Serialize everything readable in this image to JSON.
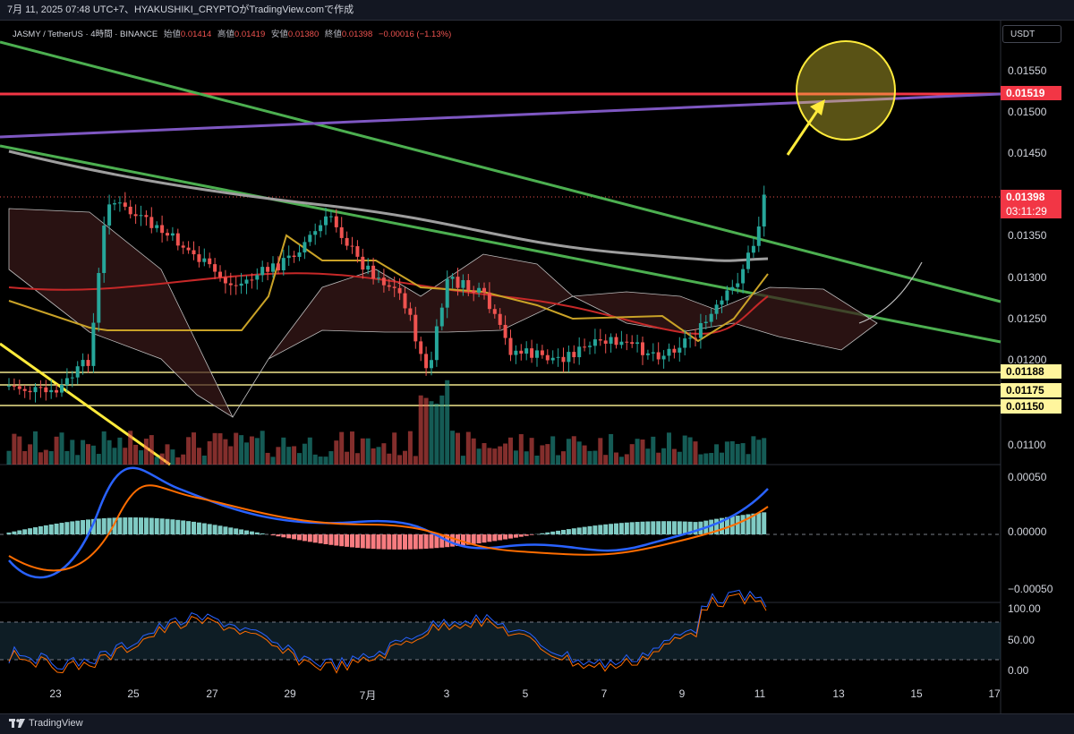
{
  "caption": "7月 11, 2025 07:48 UTC+7、HYAKUSHIKI_CRYPTOがTradingView.comで作成",
  "legend": {
    "symbol": "JASMY / TetherUS · 4時間 · BINANCE",
    "open_label": "始値",
    "open": "0.01414",
    "high_label": "高値",
    "high": "0.01419",
    "low_label": "安値",
    "low": "0.01380",
    "close_label": "終値",
    "close": "0.01398",
    "change": "−0.00016 (−1.13%)"
  },
  "currency_button": "USDT",
  "price_ticks": [
    "0.01550",
    "0.01500",
    "0.01450",
    "0.01350",
    "0.01300",
    "0.01250",
    "0.01200",
    "0.01100"
  ],
  "price_tags": {
    "resistance": "0.01519",
    "last_price": "0.01398",
    "countdown": "03:11:29",
    "support1": "0.01188",
    "support2": "0.01175",
    "support3": "0.01150"
  },
  "macd_ticks": [
    "0.00050",
    "0.00000",
    "−0.00050"
  ],
  "rsi_ticks": [
    "100.00",
    "50.00",
    "0.00"
  ],
  "time_ticks": [
    "23",
    "25",
    "27",
    "29",
    "7月",
    "3",
    "5",
    "7",
    "9",
    "11",
    "13",
    "15",
    "17"
  ],
  "brand": "TradingView",
  "colors": {
    "resistance": "#f23645",
    "support": "#f0e68c",
    "trendline": "#4caf50",
    "purple_line": "#7e57c2",
    "up": "#26a69a",
    "down": "#ef5350",
    "highlight_circle": "#ffeb3b"
  }
}
